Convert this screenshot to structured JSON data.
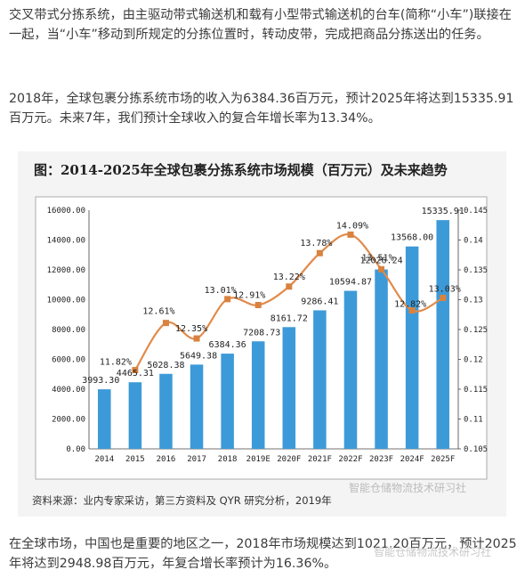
{
  "paragraphs": {
    "p1": "交叉带式分拣系统，由主驱动带式输送机和载有小型带式输送机的台车(简称“小车”)联接在一起，当“小车”移动到所规定的分拣位置时，转动皮带，完成把商品分拣送出的任务。",
    "p2": "2018年，全球包裹分拣系统市场的收入为6384.36百万元，预计2025年将达到15335.91百万元。未来7年，我们预计全球收入的复合年增长率为13.34%。",
    "p3": "在全球市场，中国也是重要的地区之一，2018年市场规模达到1021.20百万元，预计2025年将达到2948.98百万元，年复合增长率预计为16.36%。"
  },
  "source_note": "资料来源：业内专家采访，第三方资料及 QYR 研究分析，2019年",
  "watermark": "智能仓储物流技术研习社",
  "colors": {
    "bar": "#3d9ad8",
    "line": "#e08b4c",
    "marker": "#d9823f"
  },
  "chart_data": {
    "type": "bar+line",
    "title": "图：2014-2025年全球包裹分拣系统市场规模（百万元）及未来趋势",
    "categories": [
      "2014",
      "2015",
      "2016",
      "2017",
      "2018",
      "2019E",
      "2020F",
      "2021F",
      "2022F",
      "2023F",
      "2024F",
      "2025F"
    ],
    "series": [
      {
        "type": "bar",
        "axis": "left",
        "values": [
          3993.3,
          4465.31,
          5028.38,
          5649.38,
          6384.36,
          7208.73,
          8161.72,
          9286.41,
          10594.87,
          12026.24,
          13568.0,
          15335.91
        ],
        "labels": [
          "3993.30",
          "4465.31",
          "5028.38",
          "5649.38",
          "6384.36",
          "7208.73",
          "8161.72",
          "9286.41",
          "10594.87",
          "12026.24",
          "13568.00",
          "15335.91"
        ]
      },
      {
        "type": "line",
        "axis": "right",
        "values": [
          null,
          0.1182,
          0.1261,
          0.1235,
          0.1301,
          0.1291,
          0.1322,
          0.1378,
          0.1409,
          0.1351,
          0.1282,
          0.1303
        ],
        "labels": [
          null,
          "11.82%",
          "12.61%",
          "12.35%",
          "13.01%",
          "12.91%",
          "13.22%",
          "13.78%",
          "14.09%",
          "13.51%",
          "12.82%",
          "13.03%"
        ]
      }
    ],
    "left_axis": {
      "min": 0,
      "max": 16000,
      "step": 2000,
      "tick_labels": [
        "0.00",
        "2000.00",
        "4000.00",
        "6000.00",
        "8000.00",
        "10000.00",
        "12000.00",
        "14000.00",
        "16000.00"
      ]
    },
    "right_axis": {
      "min": 0.105,
      "max": 0.145,
      "step": 0.005,
      "tick_labels": [
        "0.105",
        "0.11",
        "0.115",
        "0.12",
        "0.125",
        "0.13",
        "0.135",
        "0.14",
        "0.145"
      ]
    },
    "grid": false,
    "legend": "none"
  }
}
